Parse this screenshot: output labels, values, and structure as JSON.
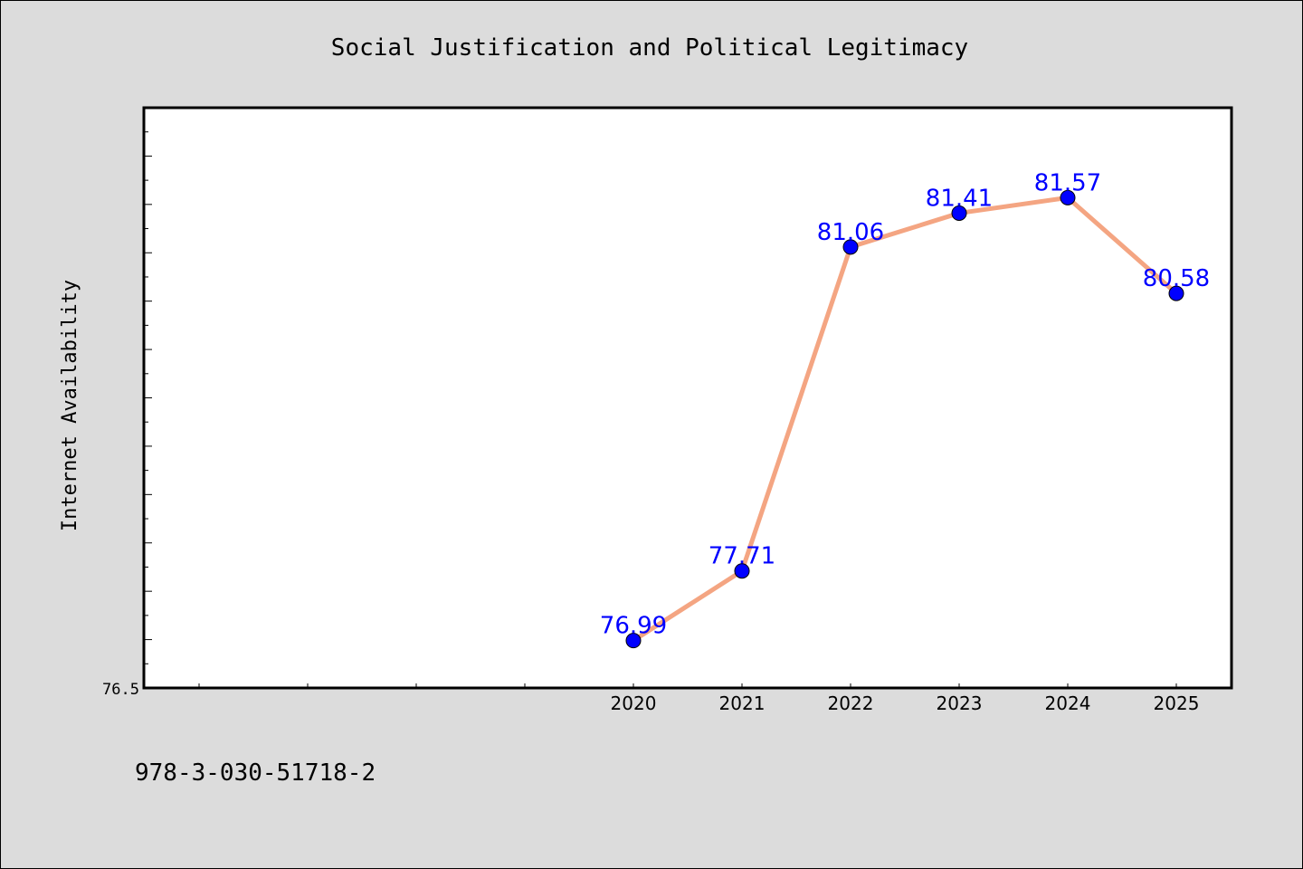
{
  "chart_data": {
    "type": "line",
    "title": "Social Justification and Political Legitimacy",
    "xlabel": "",
    "ylabel": "Internet Availability",
    "categories": [
      "2020",
      "2021",
      "2022",
      "2023",
      "2024",
      "2025"
    ],
    "values": [
      76.99,
      77.71,
      81.06,
      81.41,
      81.57,
      80.58
    ],
    "data_labels": [
      "76.99",
      "77.71",
      "81.06",
      "81.41",
      "81.57",
      "80.58"
    ],
    "ylim": [
      76.5,
      82.5
    ],
    "ytick_labels": [
      "76.5"
    ],
    "grid": false,
    "legend": "none",
    "line_color": "#f4a582",
    "marker_color": "#0000ff",
    "label_color": "#0000ff"
  },
  "footer": {
    "isbn": "978-3-030-51718-2"
  }
}
